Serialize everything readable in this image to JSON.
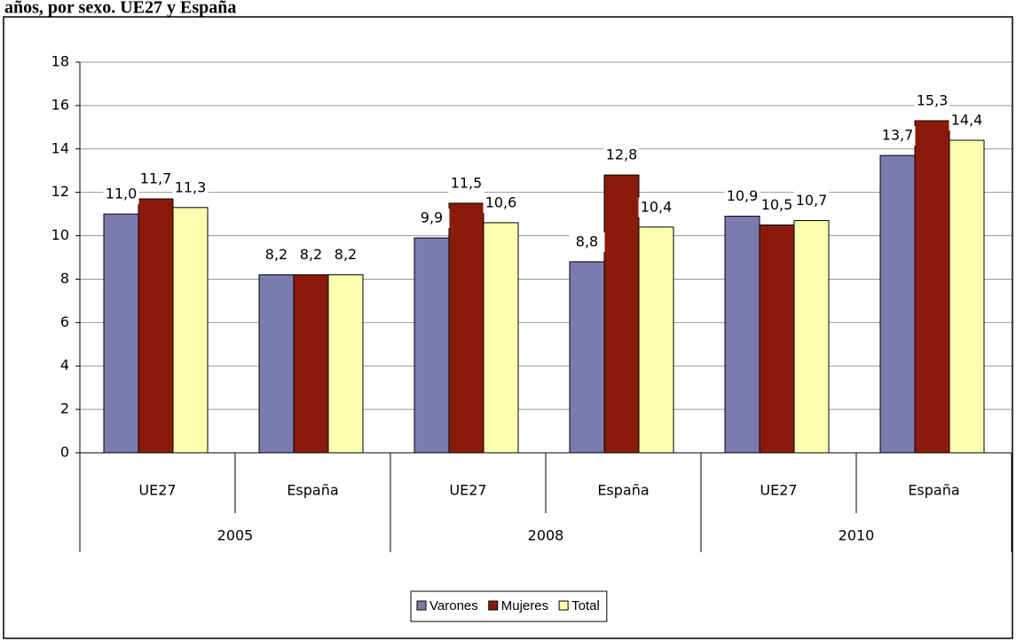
{
  "chart_data": {
    "type": "bar",
    "title": "años, por sexo. UE27 y España",
    "categories": [
      "UE27",
      "España",
      "UE27",
      "España",
      "UE27",
      "España"
    ],
    "groups": [
      "2005",
      "2008",
      "2010"
    ],
    "series": [
      {
        "name": "Varones",
        "color": "#7b7bad",
        "values": [
          11.0,
          8.2,
          9.9,
          8.8,
          10.9,
          13.7
        ],
        "value_labels": [
          "11,0",
          "8,2",
          "9,9",
          "8,8",
          "10,9",
          "13,7"
        ]
      },
      {
        "name": "Mujeres",
        "color": "#8b1a0a",
        "values": [
          11.7,
          8.2,
          11.5,
          12.8,
          10.5,
          15.3
        ],
        "value_labels": [
          "11,7",
          "8,2",
          "11,5",
          "12,8",
          "10,5",
          "15,3"
        ]
      },
      {
        "name": "Total",
        "color": "#ffffb0",
        "values": [
          11.3,
          8.2,
          10.6,
          10.4,
          10.7,
          14.4
        ],
        "value_labels": [
          "11,3",
          "8,2",
          "10,6",
          "10,4",
          "10,7",
          "14,4"
        ]
      }
    ],
    "ylim": [
      0,
      18
    ],
    "yticks": [
      0,
      2,
      4,
      6,
      8,
      10,
      12,
      14,
      16,
      18
    ],
    "grid": true,
    "legend": "bottom"
  }
}
